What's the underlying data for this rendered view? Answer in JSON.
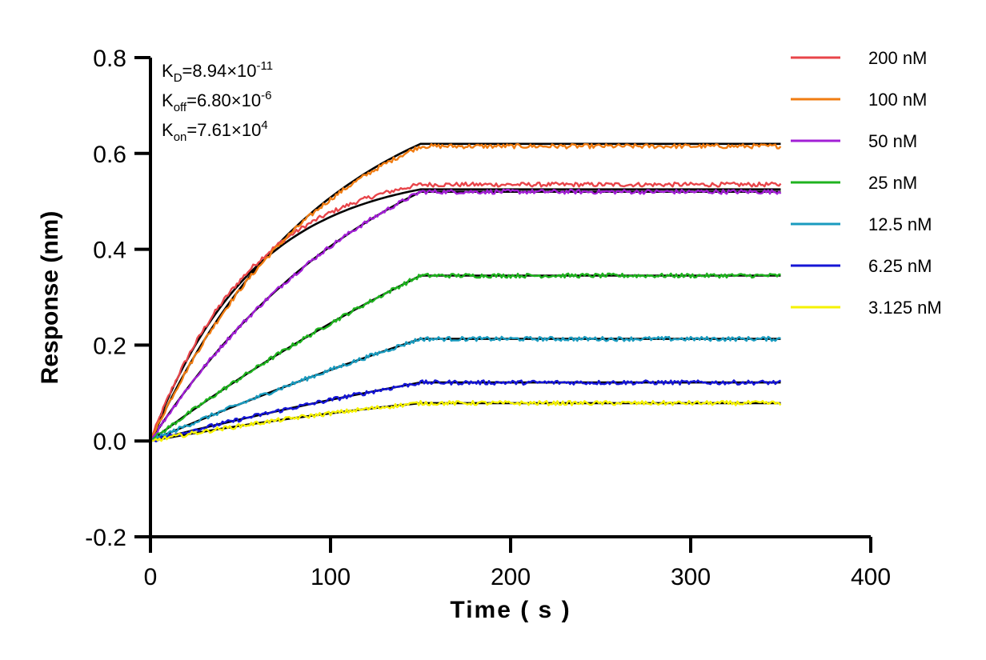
{
  "chart_data": {
    "type": "line",
    "title": "",
    "xlabel": "Time ( s )",
    "ylabel": "Response (nm)",
    "xlim": [
      0,
      400
    ],
    "ylim": [
      -0.2,
      0.8
    ],
    "x_ticks": [
      0,
      100,
      200,
      300,
      400
    ],
    "x_tick_labels": [
      "0",
      "100",
      "200",
      "300",
      "400"
    ],
    "y_ticks": [
      -0.2,
      0.0,
      0.2,
      0.4,
      0.6,
      0.8
    ],
    "y_tick_labels": [
      "-0.2",
      "0.0",
      "0.2",
      "0.4",
      "0.6",
      "0.8"
    ],
    "grid": false,
    "legend_position": "right",
    "association_end_s": 150,
    "end_s": 350,
    "fit_color": "#000000",
    "annotations": [
      {
        "base": "K",
        "sub": "D",
        "value": "=8.94×10",
        "sup": "-11"
      },
      {
        "base": "K",
        "sub": "off",
        "value": "=6.80×10",
        "sup": "-6"
      },
      {
        "base": "K",
        "sub": "on",
        "value": "=7.61×10",
        "sup": "4"
      }
    ],
    "series": [
      {
        "name": "200 nM",
        "color": "#e8454a",
        "plateau": 0.535,
        "fit_plateau": 0.525,
        "kobs": 0.0175
      },
      {
        "name": "100 nM",
        "color": "#f07c12",
        "plateau": 0.615,
        "fit_plateau": 0.62,
        "kobs": 0.0105
      },
      {
        "name": "50 nM",
        "color": "#a21fd6",
        "plateau": 0.52,
        "fit_plateau": 0.52,
        "kobs": 0.0075
      },
      {
        "name": "25 nM",
        "color": "#1fb31f",
        "plateau": 0.345,
        "fit_plateau": 0.345,
        "kobs": 0.0028
      },
      {
        "name": "12.5 nM",
        "color": "#1a9bbf",
        "plateau": 0.213,
        "fit_plateau": 0.213,
        "kobs": 0.0018
      },
      {
        "name": "6.25 nM",
        "color": "#1515d6",
        "plateau": 0.122,
        "fit_plateau": 0.122,
        "kobs": 0.0022
      },
      {
        "name": "3.125 nM",
        "color": "#f5f200",
        "plateau": 0.079,
        "fit_plateau": 0.079,
        "kobs": 0.004
      }
    ]
  }
}
